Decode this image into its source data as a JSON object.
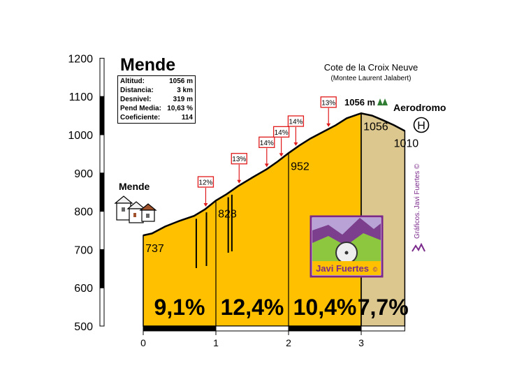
{
  "chart_data": {
    "type": "area",
    "title": "Mende",
    "climb_title": "Cote de la Croix Neuve",
    "climb_subtitle": "(Montee Laurent Jalabert)",
    "xlim": [
      0,
      3.6
    ],
    "ylim": [
      500,
      1200
    ],
    "x_ticks": [
      "0",
      "1",
      "2",
      "3"
    ],
    "y_ticks": [
      "500",
      "600",
      "700",
      "800",
      "900",
      "1000",
      "1100",
      "1200"
    ],
    "profile": {
      "x": [
        0,
        0.12,
        0.3,
        0.5,
        0.7,
        0.85,
        1.0,
        1.15,
        1.3,
        1.5,
        1.7,
        1.85,
        2.0,
        2.15,
        2.3,
        2.5,
        2.65,
        2.8,
        2.95,
        3.0,
        3.15,
        3.3,
        3.45,
        3.6
      ],
      "y": [
        737,
        742,
        760,
        775,
        788,
        805,
        828,
        845,
        865,
        888,
        910,
        930,
        952,
        972,
        990,
        1010,
        1025,
        1043,
        1053,
        1056,
        1050,
        1038,
        1025,
        1010
      ]
    },
    "segment_breaks": [
      1,
      2,
      3
    ],
    "segment_gradients": [
      "9,1%",
      "12,4%",
      "10,4%",
      "7,7%"
    ],
    "point_labels": [
      {
        "x": 0.03,
        "y": 737,
        "label": "737"
      },
      {
        "x": 1.03,
        "y": 828,
        "label": "828"
      },
      {
        "x": 2.03,
        "y": 952,
        "label": "952"
      },
      {
        "x": 3.03,
        "y": 1056,
        "label": "1056"
      },
      {
        "x": 3.6,
        "y": 1010,
        "label": "1010"
      }
    ],
    "max_gradients": [
      {
        "x": 0.86,
        "label": "12%"
      },
      {
        "x": 1.32,
        "label": "13%"
      },
      {
        "x": 1.7,
        "label": "14%"
      },
      {
        "x": 1.9,
        "label": "14%"
      },
      {
        "x": 2.1,
        "label": "14%"
      },
      {
        "x": 2.55,
        "label": "13%"
      }
    ],
    "summit_label": "1056 m",
    "places": [
      {
        "name": "Mende",
        "icon": "village-icon"
      },
      {
        "name": "Aerodromo",
        "icon": "heliport-icon"
      }
    ],
    "heliport_symbol": "H",
    "stats": [
      {
        "label": "Altitud:",
        "value": "1056 m"
      },
      {
        "label": "Distancia:",
        "value": "3 km"
      },
      {
        "label": "Desnivel:",
        "value": "319 m"
      },
      {
        "label": "Pend Media:",
        "value": "10,63 %"
      },
      {
        "label": "Coeficiente:",
        "value": "114"
      }
    ],
    "logo_text": "Javi Fuertes",
    "credit": "Gráficos. Javi Fuertes ©",
    "colors": {
      "climb_fill": "#ffc000",
      "descent_fill": "#dcc78f",
      "gradient_box_border": "#e01a1a",
      "logo_border": "#7b2a8c",
      "credit": "#7b2a8c"
    }
  }
}
